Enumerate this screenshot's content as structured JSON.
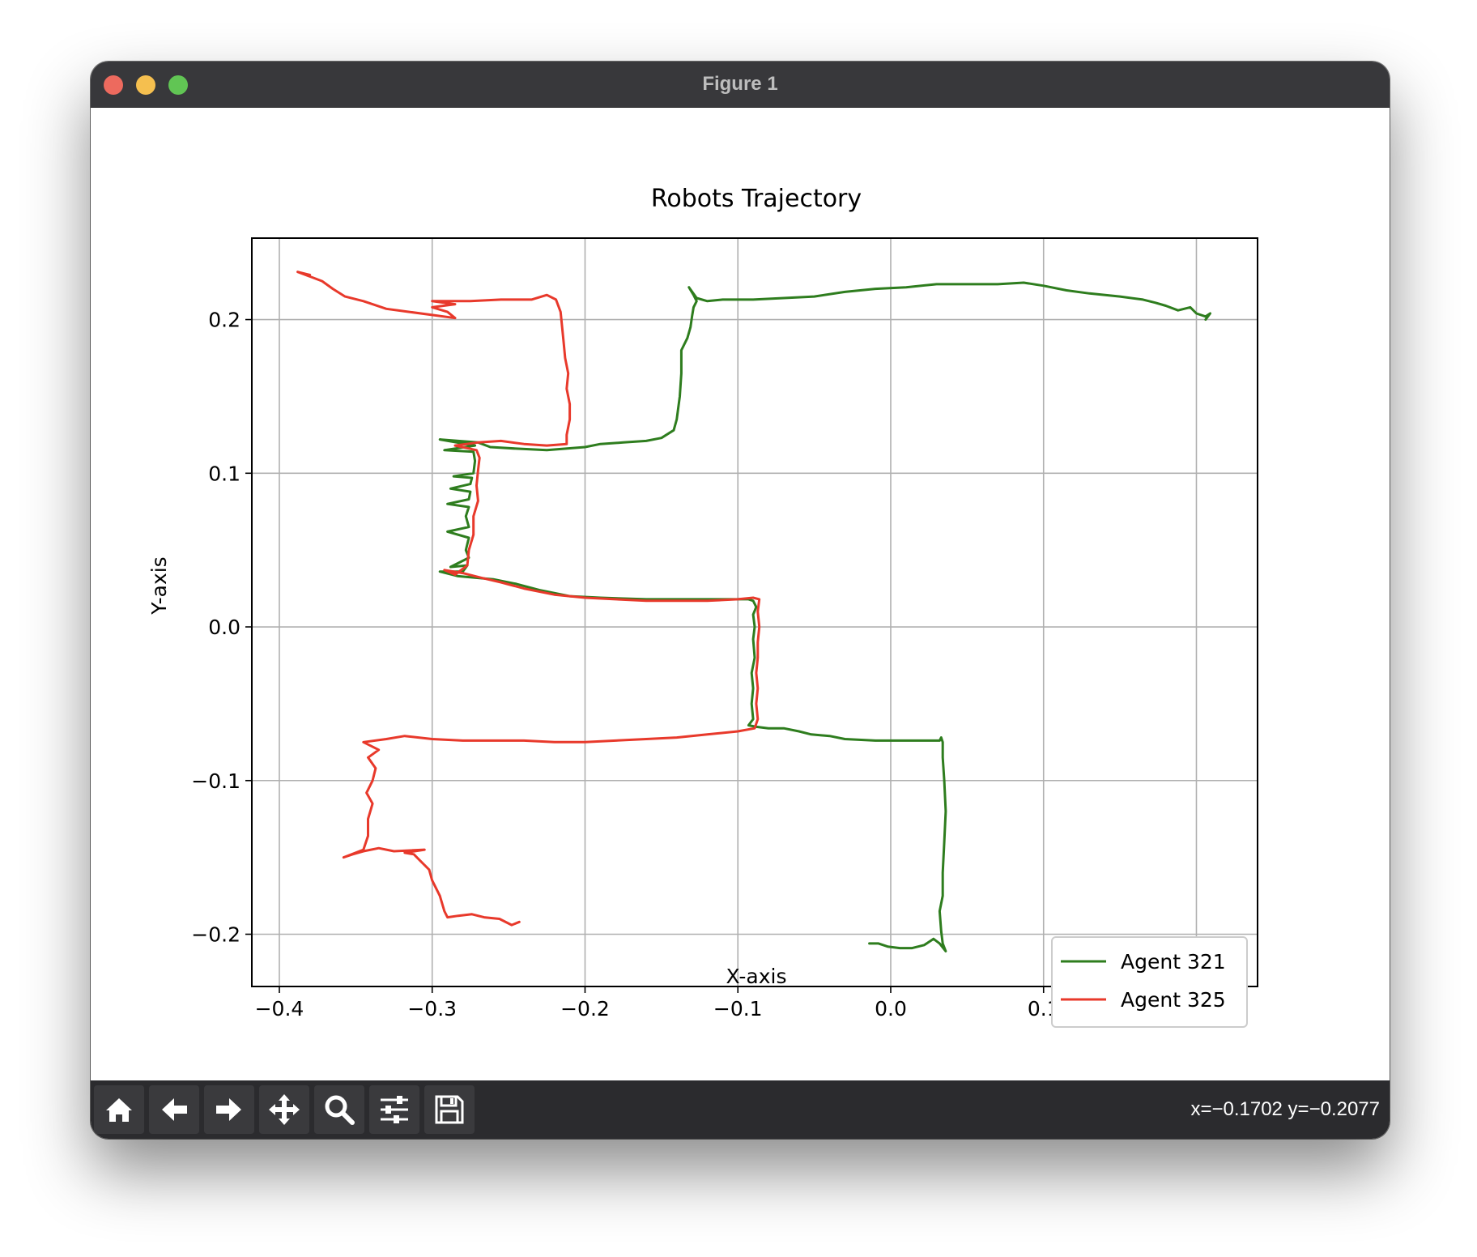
{
  "window": {
    "title": "Figure 1"
  },
  "toolbar": {
    "buttons": [
      {
        "name": "home-button",
        "icon": "home-icon"
      },
      {
        "name": "back-button",
        "icon": "arrow-left-icon"
      },
      {
        "name": "forward-button",
        "icon": "arrow-right-icon"
      },
      {
        "name": "pan-button",
        "icon": "move-icon"
      },
      {
        "name": "zoom-button",
        "icon": "magnifier-icon"
      },
      {
        "name": "configure-subplots-button",
        "icon": "sliders-icon"
      },
      {
        "name": "save-button",
        "icon": "floppy-icon"
      }
    ],
    "coords": "x=−0.1702 y=−0.2077"
  },
  "chart_data": {
    "type": "line",
    "title": "Robots Trajectory",
    "xlabel": "X-axis",
    "ylabel": "Y-axis",
    "xlim": [
      -0.418,
      0.24
    ],
    "ylim": [
      -0.234,
      0.253
    ],
    "xticks": [
      -0.4,
      -0.3,
      -0.2,
      -0.1,
      0.0,
      0.1,
      0.2
    ],
    "xtick_labels": [
      "−0.4",
      "−0.3",
      "−0.2",
      "−0.1",
      "0.0",
      "0.1",
      "0.2"
    ],
    "yticks": [
      0.2,
      0.1,
      0.0,
      -0.1,
      -0.2
    ],
    "ytick_labels": [
      "0.2",
      "0.1",
      "0.0",
      "−0.1",
      "−0.2"
    ],
    "grid": true,
    "legend_position": "lower-right",
    "series": [
      {
        "name": "Agent 321",
        "color": "#2e7d1e",
        "points": [
          [
            -0.014,
            -0.206
          ],
          [
            -0.008,
            -0.206
          ],
          [
            -0.002,
            -0.208
          ],
          [
            0.006,
            -0.209
          ],
          [
            0.014,
            -0.209
          ],
          [
            0.022,
            -0.207
          ],
          [
            0.028,
            -0.203
          ],
          [
            0.032,
            -0.206
          ],
          [
            0.036,
            -0.211
          ],
          [
            0.034,
            -0.206
          ],
          [
            0.033,
            -0.198
          ],
          [
            0.032,
            -0.185
          ],
          [
            0.034,
            -0.175
          ],
          [
            0.034,
            -0.16
          ],
          [
            0.035,
            -0.14
          ],
          [
            0.036,
            -0.12
          ],
          [
            0.035,
            -0.1
          ],
          [
            0.034,
            -0.085
          ],
          [
            0.034,
            -0.075
          ],
          [
            0.033,
            -0.072
          ],
          [
            0.032,
            -0.074
          ],
          [
            0.02,
            -0.074
          ],
          [
            0.005,
            -0.074
          ],
          [
            -0.01,
            -0.074
          ],
          [
            -0.03,
            -0.073
          ],
          [
            -0.04,
            -0.071
          ],
          [
            -0.052,
            -0.07
          ],
          [
            -0.06,
            -0.068
          ],
          [
            -0.07,
            -0.066
          ],
          [
            -0.08,
            -0.066
          ],
          [
            -0.088,
            -0.065
          ],
          [
            -0.093,
            -0.064
          ],
          [
            -0.09,
            -0.06
          ],
          [
            -0.091,
            -0.05
          ],
          [
            -0.09,
            -0.04
          ],
          [
            -0.091,
            -0.03
          ],
          [
            -0.089,
            -0.02
          ],
          [
            -0.09,
            -0.008
          ],
          [
            -0.089,
            0.0
          ],
          [
            -0.09,
            0.008
          ],
          [
            -0.088,
            0.013
          ],
          [
            -0.09,
            0.017
          ],
          [
            -0.093,
            0.018
          ],
          [
            -0.1,
            0.018
          ],
          [
            -0.13,
            0.018
          ],
          [
            -0.16,
            0.018
          ],
          [
            -0.19,
            0.019
          ],
          [
            -0.21,
            0.02
          ],
          [
            -0.23,
            0.024
          ],
          [
            -0.245,
            0.028
          ],
          [
            -0.26,
            0.031
          ],
          [
            -0.272,
            0.032
          ],
          [
            -0.283,
            0.033
          ],
          [
            -0.295,
            0.036
          ],
          [
            -0.28,
            0.036
          ],
          [
            -0.277,
            0.04
          ],
          [
            -0.288,
            0.039
          ],
          [
            -0.276,
            0.045
          ],
          [
            -0.278,
            0.05
          ],
          [
            -0.276,
            0.058
          ],
          [
            -0.29,
            0.062
          ],
          [
            -0.276,
            0.065
          ],
          [
            -0.278,
            0.072
          ],
          [
            -0.276,
            0.078
          ],
          [
            -0.29,
            0.08
          ],
          [
            -0.276,
            0.083
          ],
          [
            -0.275,
            0.088
          ],
          [
            -0.288,
            0.09
          ],
          [
            -0.275,
            0.093
          ],
          [
            -0.274,
            0.097
          ],
          [
            -0.286,
            0.098
          ],
          [
            -0.273,
            0.1
          ],
          [
            -0.272,
            0.108
          ],
          [
            -0.273,
            0.114
          ],
          [
            -0.292,
            0.115
          ],
          [
            -0.272,
            0.118
          ],
          [
            -0.295,
            0.122
          ],
          [
            -0.27,
            0.12
          ],
          [
            -0.262,
            0.117
          ],
          [
            -0.245,
            0.116
          ],
          [
            -0.225,
            0.115
          ],
          [
            -0.2,
            0.117
          ],
          [
            -0.19,
            0.119
          ],
          [
            -0.175,
            0.12
          ],
          [
            -0.16,
            0.121
          ],
          [
            -0.15,
            0.123
          ],
          [
            -0.142,
            0.128
          ],
          [
            -0.14,
            0.135
          ],
          [
            -0.138,
            0.15
          ],
          [
            -0.137,
            0.165
          ],
          [
            -0.137,
            0.18
          ],
          [
            -0.133,
            0.188
          ],
          [
            -0.131,
            0.195
          ],
          [
            -0.13,
            0.202
          ],
          [
            -0.129,
            0.208
          ],
          [
            -0.127,
            0.212
          ],
          [
            -0.129,
            0.216
          ],
          [
            -0.132,
            0.221
          ],
          [
            -0.127,
            0.214
          ],
          [
            -0.12,
            0.212
          ],
          [
            -0.11,
            0.213
          ],
          [
            -0.09,
            0.213
          ],
          [
            -0.07,
            0.214
          ],
          [
            -0.05,
            0.215
          ],
          [
            -0.03,
            0.218
          ],
          [
            -0.01,
            0.22
          ],
          [
            0.01,
            0.221
          ],
          [
            0.03,
            0.223
          ],
          [
            0.05,
            0.223
          ],
          [
            0.07,
            0.223
          ],
          [
            0.087,
            0.224
          ],
          [
            0.1,
            0.222
          ],
          [
            0.115,
            0.219
          ],
          [
            0.13,
            0.217
          ],
          [
            0.15,
            0.215
          ],
          [
            0.165,
            0.213
          ],
          [
            0.173,
            0.211
          ],
          [
            0.18,
            0.209
          ],
          [
            0.188,
            0.206
          ],
          [
            0.196,
            0.208
          ],
          [
            0.2,
            0.204
          ],
          [
            0.206,
            0.202
          ],
          [
            0.209,
            0.204
          ],
          [
            0.206,
            0.2
          ]
        ]
      },
      {
        "name": "Agent 325",
        "color": "#e8392b",
        "points": [
          [
            -0.243,
            -0.192
          ],
          [
            -0.248,
            -0.194
          ],
          [
            -0.256,
            -0.19
          ],
          [
            -0.266,
            -0.189
          ],
          [
            -0.274,
            -0.187
          ],
          [
            -0.283,
            -0.188
          ],
          [
            -0.29,
            -0.189
          ],
          [
            -0.292,
            -0.185
          ],
          [
            -0.295,
            -0.175
          ],
          [
            -0.3,
            -0.165
          ],
          [
            -0.302,
            -0.158
          ],
          [
            -0.308,
            -0.152
          ],
          [
            -0.312,
            -0.148
          ],
          [
            -0.318,
            -0.147
          ],
          [
            -0.305,
            -0.145
          ],
          [
            -0.325,
            -0.146
          ],
          [
            -0.335,
            -0.144
          ],
          [
            -0.345,
            -0.146
          ],
          [
            -0.352,
            -0.148
          ],
          [
            -0.358,
            -0.15
          ],
          [
            -0.345,
            -0.145
          ],
          [
            -0.342,
            -0.136
          ],
          [
            -0.342,
            -0.125
          ],
          [
            -0.339,
            -0.115
          ],
          [
            -0.343,
            -0.108
          ],
          [
            -0.339,
            -0.1
          ],
          [
            -0.337,
            -0.092
          ],
          [
            -0.342,
            -0.085
          ],
          [
            -0.335,
            -0.08
          ],
          [
            -0.345,
            -0.075
          ],
          [
            -0.33,
            -0.073
          ],
          [
            -0.318,
            -0.071
          ],
          [
            -0.3,
            -0.073
          ],
          [
            -0.28,
            -0.074
          ],
          [
            -0.26,
            -0.074
          ],
          [
            -0.24,
            -0.074
          ],
          [
            -0.22,
            -0.075
          ],
          [
            -0.2,
            -0.075
          ],
          [
            -0.18,
            -0.074
          ],
          [
            -0.16,
            -0.073
          ],
          [
            -0.14,
            -0.072
          ],
          [
            -0.12,
            -0.07
          ],
          [
            -0.1,
            -0.068
          ],
          [
            -0.089,
            -0.066
          ],
          [
            -0.087,
            -0.06
          ],
          [
            -0.088,
            -0.05
          ],
          [
            -0.087,
            -0.04
          ],
          [
            -0.088,
            -0.03
          ],
          [
            -0.087,
            -0.02
          ],
          [
            -0.087,
            -0.01
          ],
          [
            -0.086,
            0.0
          ],
          [
            -0.087,
            0.01
          ],
          [
            -0.086,
            0.018
          ],
          [
            -0.09,
            0.019
          ],
          [
            -0.1,
            0.018
          ],
          [
            -0.12,
            0.017
          ],
          [
            -0.14,
            0.017
          ],
          [
            -0.16,
            0.017
          ],
          [
            -0.18,
            0.018
          ],
          [
            -0.2,
            0.019
          ],
          [
            -0.22,
            0.021
          ],
          [
            -0.24,
            0.025
          ],
          [
            -0.255,
            0.029
          ],
          [
            -0.268,
            0.032
          ],
          [
            -0.28,
            0.035
          ],
          [
            -0.292,
            0.037
          ],
          [
            -0.285,
            0.034
          ],
          [
            -0.277,
            0.04
          ],
          [
            -0.276,
            0.05
          ],
          [
            -0.273,
            0.06
          ],
          [
            -0.273,
            0.072
          ],
          [
            -0.27,
            0.082
          ],
          [
            -0.271,
            0.092
          ],
          [
            -0.27,
            0.102
          ],
          [
            -0.269,
            0.11
          ],
          [
            -0.271,
            0.115
          ],
          [
            -0.285,
            0.118
          ],
          [
            -0.27,
            0.12
          ],
          [
            -0.255,
            0.121
          ],
          [
            -0.24,
            0.119
          ],
          [
            -0.225,
            0.118
          ],
          [
            -0.212,
            0.119
          ],
          [
            -0.212,
            0.125
          ],
          [
            -0.21,
            0.135
          ],
          [
            -0.21,
            0.145
          ],
          [
            -0.212,
            0.155
          ],
          [
            -0.211,
            0.165
          ],
          [
            -0.213,
            0.175
          ],
          [
            -0.214,
            0.185
          ],
          [
            -0.215,
            0.195
          ],
          [
            -0.216,
            0.205
          ],
          [
            -0.219,
            0.213
          ],
          [
            -0.225,
            0.216
          ],
          [
            -0.235,
            0.213
          ],
          [
            -0.255,
            0.213
          ],
          [
            -0.275,
            0.212
          ],
          [
            -0.29,
            0.212
          ],
          [
            -0.3,
            0.212
          ],
          [
            -0.285,
            0.21
          ],
          [
            -0.3,
            0.208
          ],
          [
            -0.29,
            0.205
          ],
          [
            -0.285,
            0.201
          ],
          [
            -0.3,
            0.203
          ],
          [
            -0.315,
            0.205
          ],
          [
            -0.33,
            0.207
          ],
          [
            -0.345,
            0.212
          ],
          [
            -0.357,
            0.215
          ],
          [
            -0.365,
            0.22
          ],
          [
            -0.372,
            0.225
          ],
          [
            -0.38,
            0.228
          ],
          [
            -0.388,
            0.231
          ],
          [
            -0.38,
            0.229
          ]
        ]
      }
    ]
  }
}
